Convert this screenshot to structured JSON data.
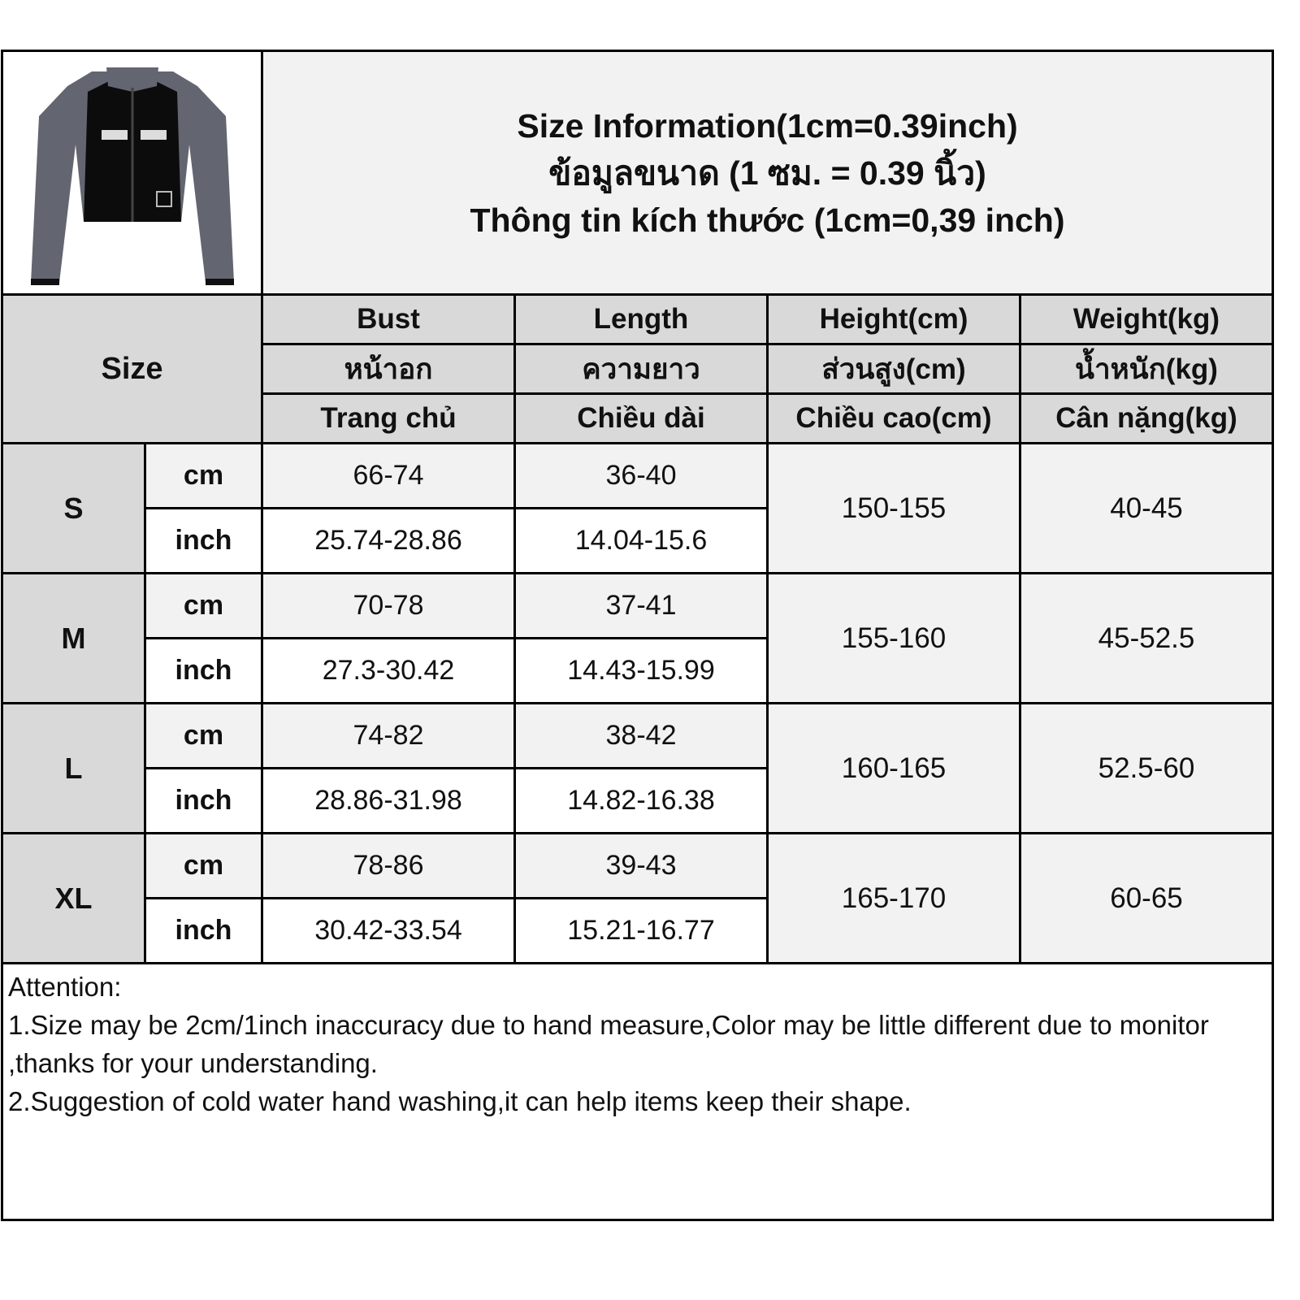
{
  "title_lines": [
    "Size Information(1cm=0.39inch)",
    "ข้อมูลขนาด (1 ซม. = 0.39 นิ้ว)",
    "Thông tin kích thước (1cm=0,39 inch)"
  ],
  "size_header": "Size",
  "columns": [
    {
      "en": "Bust",
      "th": "หน้าอก",
      "vi": "Trang chủ"
    },
    {
      "en": "Length",
      "th": "ความยาว",
      "vi": "Chiều dài"
    },
    {
      "en": "Height(cm)",
      "th": "ส่วนสูง(cm)",
      "vi": "Chiều cao(cm)"
    },
    {
      "en": "Weight(kg)",
      "th": "น้ำหนัก(kg)",
      "vi": "Cân nặng(kg)"
    }
  ],
  "unit_cm": "cm",
  "unit_inch": "inch",
  "rows": [
    {
      "size": "S",
      "bust_cm": "66-74",
      "bust_inch": "25.74-28.86",
      "length_cm": "36-40",
      "length_inch": "14.04-15.6",
      "height": "150-155",
      "weight": "40-45"
    },
    {
      "size": "M",
      "bust_cm": "70-78",
      "bust_inch": "27.3-30.42",
      "length_cm": "37-41",
      "length_inch": "14.43-15.99",
      "height": "155-160",
      "weight": "45-52.5"
    },
    {
      "size": "L",
      "bust_cm": "74-82",
      "bust_inch": "28.86-31.98",
      "length_cm": "38-42",
      "length_inch": "14.82-16.38",
      "height": "160-165",
      "weight": "52.5-60"
    },
    {
      "size": "XL",
      "bust_cm": "78-86",
      "bust_inch": "30.42-33.54",
      "length_cm": "39-43",
      "length_inch": "15.21-16.77",
      "height": "165-170",
      "weight": "60-65"
    }
  ],
  "attention": {
    "heading": "Attention:",
    "notes": [
      "1.Size may be 2cm/1inch inaccuracy due to hand measure,Color may be little different due to monitor ,thanks for your understanding.",
      "2.Suggestion of cold water hand washing,it can help items keep their shape."
    ]
  },
  "colors": {
    "header_bg": "#d9d9d9",
    "cm_row_bg": "#f2f2f2",
    "inch_row_bg": "#ffffff",
    "border": "#000000"
  }
}
